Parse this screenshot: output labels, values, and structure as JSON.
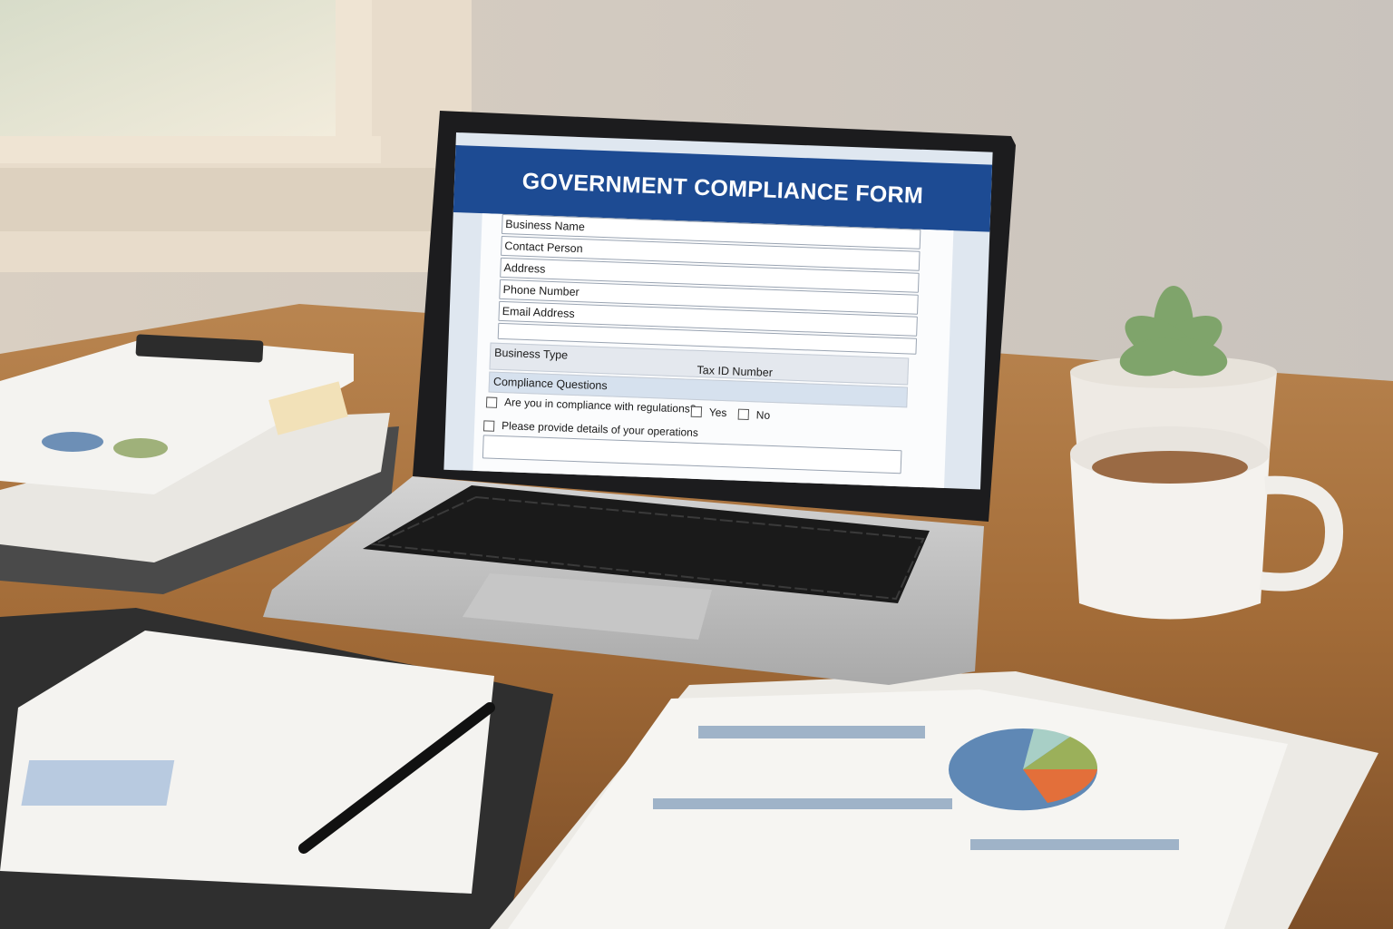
{
  "form": {
    "title": "GOVERNMENT COMPLIANCE FORM",
    "fields": [
      {
        "label": "Business Name"
      },
      {
        "label": "Contact Person"
      },
      {
        "label": "Address"
      },
      {
        "label": "Phone Number"
      },
      {
        "label": "Email Address"
      }
    ],
    "business_type_label": "Business Type",
    "tax_id_label": "Tax ID Number",
    "section_title": "Compliance Questions",
    "question_1": "Are you in compliance with regulations?",
    "yes_label": "Yes",
    "no_label": "No",
    "question_2": "Please provide details of your operations"
  },
  "colors": {
    "header_blue": "#1d4b93",
    "desk_wood": "#a8743f",
    "wall": "#cfc6bb"
  }
}
